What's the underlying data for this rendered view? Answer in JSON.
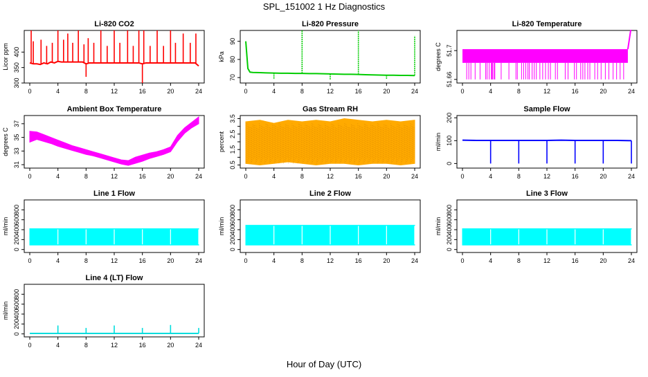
{
  "page": {
    "title": "SPL_151002  1 Hz Diagnostics",
    "xlabel": "Hour of Day (UTC)"
  },
  "x_ticks": [
    0,
    4,
    8,
    12,
    16,
    20,
    24
  ],
  "chart_data": [
    {
      "type": "line",
      "title": "Li-820 CO2",
      "ylabel": "Licor ppm",
      "color": "#ff0000",
      "ylim": [
        300,
        470
      ],
      "yticks": [
        300,
        350,
        400
      ],
      "x": [
        0,
        0.5,
        1,
        1.5,
        2,
        2.5,
        3,
        3.5,
        4,
        4.5,
        5,
        5.5,
        6,
        6.5,
        7,
        7.5,
        8,
        8.5,
        9,
        9.5,
        10,
        10.5,
        11,
        11.5,
        12,
        12.5,
        13,
        13.5,
        14,
        14.5,
        15,
        15.5,
        16,
        16.5,
        17,
        17.5,
        18,
        18.5,
        19,
        19.5,
        20,
        20.5,
        21,
        21.5,
        22,
        22.5,
        23,
        23.5,
        24
      ],
      "series": [
        {
          "values": [
            365,
            362,
            362,
            360,
            365,
            362,
            368,
            365,
            370,
            368,
            368,
            368,
            368,
            368,
            368,
            368,
            362,
            365,
            365,
            365,
            365,
            365,
            365,
            365,
            365,
            365,
            365,
            365,
            365,
            365,
            365,
            365,
            362,
            365,
            365,
            365,
            365,
            365,
            365,
            365,
            365,
            365,
            365,
            365,
            365,
            365,
            365,
            365,
            355
          ]
        }
      ],
      "spikes_x": [
        0.2,
        0.5,
        1.6,
        2.4,
        3.2,
        4,
        4.8,
        5.4,
        6.1,
        6.9,
        7.7,
        8,
        8.3,
        9.1,
        10.1,
        11,
        12,
        12.8,
        13.9,
        14.7,
        15.5,
        16,
        16.2,
        17.1,
        18.1,
        19,
        20,
        20.7,
        21.8,
        22.8,
        23.6
      ],
      "spikes_y": [
        470,
        435,
        440,
        420,
        430,
        470,
        440,
        460,
        430,
        470,
        425,
        320,
        445,
        430,
        470,
        420,
        470,
        430,
        470,
        420,
        470,
        300,
        470,
        420,
        470,
        420,
        470,
        430,
        460,
        430,
        460
      ]
    },
    {
      "type": "line",
      "title": "Li-820 Pressure",
      "ylabel": "kPa",
      "color": "#00cc00",
      "ylim": [
        67,
        96
      ],
      "yticks": [
        70,
        80,
        90
      ],
      "x": [
        0,
        0.3,
        0.6,
        1,
        2,
        3,
        4,
        5,
        6,
        7,
        8,
        9,
        10,
        11,
        12,
        13,
        14,
        15,
        16,
        17,
        18,
        19,
        20,
        21,
        22,
        23,
        24
      ],
      "series": [
        {
          "values": [
            90,
            75,
            73,
            72.8,
            72.7,
            72.6,
            72.5,
            72.4,
            72.4,
            72.3,
            72.3,
            72.2,
            72.2,
            72.1,
            72,
            71.9,
            71.8,
            71.8,
            71.7,
            71.6,
            71.5,
            71.4,
            71.3,
            71.3,
            71.2,
            71.2,
            71.1
          ]
        }
      ],
      "spikes_x": [
        4,
        8,
        12,
        16,
        20,
        24
      ],
      "spikes_y": [
        69,
        96,
        69,
        96,
        69,
        93
      ]
    },
    {
      "type": "area",
      "title": "Li-820 Temperature",
      "ylabel": "degrees C",
      "color": "#ff00ff",
      "ylim": [
        51.655,
        51.728
      ],
      "yticks": [
        51.66,
        51.7
      ],
      "band_low": 51.683,
      "band_high": 51.702,
      "band_x": [
        0,
        23.5
      ],
      "dips_x": [
        0.6,
        0.9,
        1.2,
        1.8,
        2.5,
        3.3,
        3.5,
        3.8,
        4.1,
        4.2,
        4.3,
        4.5,
        4.6,
        5.5,
        6.6,
        7.6,
        7.8,
        8.4,
        8.7,
        9,
        9.3,
        9.5,
        9.9,
        10.2,
        10.5,
        11,
        11.4,
        11.8,
        12.2,
        12.5,
        13.2,
        13.5,
        14.6,
        15,
        15.9,
        16.2,
        16.8,
        17.1,
        17.4,
        17.8,
        18.1,
        18.8,
        19.2,
        19.7,
        20.3,
        20.8,
        21.4,
        21.9,
        22.4,
        22.9
      ],
      "dips_y": [
        51.66,
        51.66,
        51.66,
        51.66,
        51.66,
        51.66,
        51.66,
        51.66,
        51.66,
        51.66,
        51.66,
        51.66,
        51.66,
        51.66,
        51.66,
        51.66,
        51.66,
        51.66,
        51.66,
        51.66,
        51.66,
        51.66,
        51.66,
        51.66,
        51.66,
        51.66,
        51.66,
        51.66,
        51.66,
        51.66,
        51.66,
        51.66,
        51.66,
        51.66,
        51.66,
        51.66,
        51.66,
        51.66,
        51.66,
        51.66,
        51.66,
        51.66,
        51.66,
        51.66,
        51.66,
        51.66,
        51.66,
        51.66,
        51.66,
        51.66
      ],
      "tail_x": [
        23.5,
        23.7,
        23.9,
        24
      ],
      "tail_y": [
        51.702,
        51.715,
        51.728,
        51.728
      ]
    },
    {
      "type": "area",
      "title": "Ambient Box Temperature",
      "ylabel": "degrees C",
      "color": "#ff00ff",
      "ylim": [
        30.5,
        38.2
      ],
      "yticks": [
        31,
        33,
        35,
        37
      ],
      "x": [
        0,
        1,
        2,
        3,
        4,
        5,
        6,
        7,
        8,
        9,
        10,
        11,
        12,
        13,
        14,
        15,
        16,
        17,
        18,
        19,
        20,
        21,
        22,
        23,
        24
      ],
      "low": [
        34.3,
        34.7,
        34.4,
        34.1,
        33.7,
        33.4,
        33.1,
        32.8,
        32.5,
        32.3,
        32.0,
        31.7,
        31.4,
        31.1,
        30.9,
        31.2,
        31.5,
        31.9,
        32.2,
        32.5,
        32.9,
        34.4,
        35.6,
        36.4,
        37.0
      ],
      "high": [
        35.9,
        35.8,
        35.4,
        35.0,
        34.6,
        34.2,
        33.8,
        33.5,
        33.2,
        32.9,
        32.6,
        32.3,
        32.0,
        31.7,
        31.6,
        32.1,
        32.4,
        32.7,
        32.9,
        33.2,
        33.6,
        35.3,
        36.4,
        37.2,
        38.0
      ]
    },
    {
      "type": "area",
      "title": "Gas Stream RH",
      "ylabel": "percent",
      "color": "#ffaa00",
      "ylim": [
        0.3,
        3.7
      ],
      "yticks": [
        0.5,
        1.5,
        2.5,
        3.5
      ],
      "yticks_minor": [
        1.0,
        2.0,
        3.0
      ],
      "x": [
        0,
        2,
        4,
        6,
        8,
        10,
        12,
        14,
        16,
        18,
        20,
        22,
        24
      ],
      "low": [
        0.6,
        0.5,
        0.6,
        0.7,
        0.6,
        0.5,
        0.6,
        0.6,
        0.5,
        0.6,
        0.6,
        0.5,
        0.6
      ],
      "high": [
        3.3,
        3.4,
        3.2,
        3.4,
        3.3,
        3.4,
        3.3,
        3.5,
        3.4,
        3.3,
        3.4,
        3.3,
        3.4
      ]
    },
    {
      "type": "line",
      "title": "Sample Flow",
      "ylabel": "ml/min",
      "color": "#0000ff",
      "ylim": [
        -20,
        210
      ],
      "yticks": [
        0,
        100,
        200
      ],
      "x": [
        0,
        2,
        4,
        6,
        8,
        10,
        12,
        14,
        16,
        18,
        20,
        22,
        24
      ],
      "series": [
        {
          "values": [
            102,
            101,
            101,
            101,
            101,
            101,
            101,
            102,
            101,
            101,
            101,
            101,
            100
          ]
        }
      ],
      "spikes_x": [
        4,
        8,
        12,
        16,
        20,
        24
      ],
      "spikes_y": [
        0,
        0,
        0,
        0,
        0,
        0
      ]
    },
    {
      "type": "area",
      "title": "Line 1 Flow",
      "ylabel": "ml/min",
      "color": "#00ffff",
      "ylim": [
        -60,
        1000
      ],
      "yticks": [
        0,
        200,
        400,
        600,
        800
      ],
      "x": [
        0,
        24
      ],
      "low": [
        90,
        90
      ],
      "high": [
        420,
        420
      ],
      "gaps_x": [
        4,
        8,
        12,
        16,
        20,
        24
      ]
    },
    {
      "type": "area",
      "title": "Line 2 Flow",
      "ylabel": "ml/min",
      "color": "#00ffff",
      "ylim": [
        -60,
        1000
      ],
      "yticks": [
        0,
        200,
        400,
        600,
        800
      ],
      "x": [
        0,
        24
      ],
      "low": [
        90,
        90
      ],
      "high": [
        490,
        490
      ],
      "gaps_x": [
        4,
        8,
        12,
        16,
        20,
        24
      ]
    },
    {
      "type": "area",
      "title": "Line 3 Flow",
      "ylabel": "ml/min",
      "color": "#00ffff",
      "ylim": [
        -60,
        1000
      ],
      "yticks": [
        0,
        200,
        400,
        600,
        800
      ],
      "x": [
        0,
        24
      ],
      "low": [
        90,
        90
      ],
      "high": [
        420,
        420
      ],
      "gaps_x": [
        4,
        8,
        12,
        16,
        20,
        24
      ]
    },
    {
      "type": "line",
      "title": "Line 4 (LT) Flow",
      "ylabel": "ml/min",
      "color": "#00dddd",
      "ylim": [
        -60,
        1000
      ],
      "yticks": [
        0,
        200,
        400,
        600,
        800
      ],
      "x": [
        0,
        24
      ],
      "series": [
        {
          "values": [
            10,
            10
          ]
        }
      ],
      "spikes_x": [
        4,
        8,
        12,
        16,
        20,
        24
      ],
      "spikes_y": [
        170,
        120,
        170,
        120,
        180,
        120
      ]
    }
  ]
}
